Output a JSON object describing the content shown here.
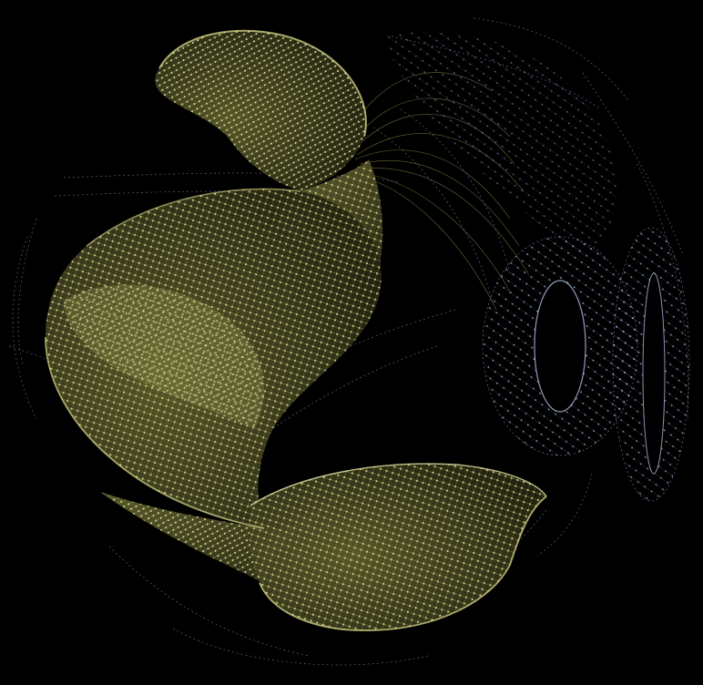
{
  "scene": {
    "background_color": "#000000",
    "mesh_colors": {
      "yellow_surface_dark": "#3d3d20",
      "yellow_surface_light": "#c8c878",
      "yellow_edges": "#dcdc8c",
      "blue_nodes": "#b4c3e6",
      "blue_edges": "#7c8cb4"
    },
    "elements": [
      {
        "name": "twisted-ribbon-mesh",
        "color_role": "yellow",
        "kind": "dense-mesh"
      },
      {
        "name": "ring-mesh-left",
        "color_role": "blue",
        "kind": "ring-mesh"
      },
      {
        "name": "ring-mesh-right",
        "color_role": "blue",
        "kind": "ring-mesh"
      },
      {
        "name": "trailing-edge-strands",
        "color_role": "blue",
        "kind": "sparse-edges"
      }
    ]
  }
}
